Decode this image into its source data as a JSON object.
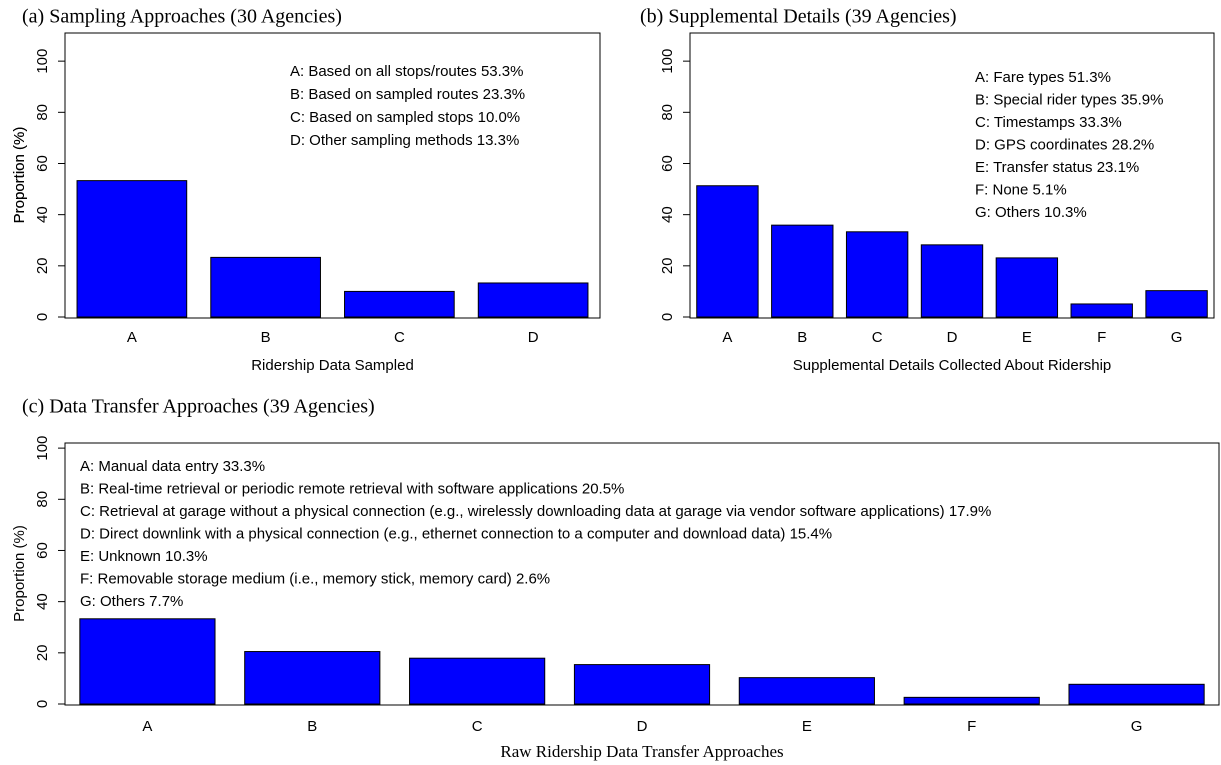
{
  "chart_data": [
    {
      "type": "bar",
      "title": "(a) Sampling Approaches  (30 Agencies)",
      "x_label": "Ridership Data Sampled",
      "y_label": "Proportion (%)",
      "categories": [
        "A",
        "B",
        "C",
        "D"
      ],
      "values": [
        53.3,
        23.3,
        10.0,
        13.3
      ],
      "color": "#0000ff",
      "ylim": [
        0,
        111
      ],
      "yticks": [
        0,
        20,
        40,
        60,
        80,
        100
      ],
      "annotations": [
        "A: Based on all stops/routes 53.3%",
        "B: Based on sampled routes 23.3%",
        "C: Based on sampled stops 10.0%",
        "D: Other sampling methods 13.3%"
      ]
    },
    {
      "type": "bar",
      "title": "(b) Supplemental Details  (39 Agencies)",
      "x_label": "Supplemental Details Collected About Ridership",
      "y_label": "Proportion (%)",
      "categories": [
        "A",
        "B",
        "C",
        "D",
        "E",
        "F",
        "G"
      ],
      "values": [
        51.3,
        35.9,
        33.3,
        28.2,
        23.1,
        5.1,
        10.3
      ],
      "color": "#0000ff",
      "ylim": [
        0,
        111
      ],
      "yticks": [
        0,
        20,
        40,
        60,
        80,
        100
      ],
      "annotations": [
        "A: Fare types 51.3%",
        "B: Special rider types 35.9%",
        "C: Timestamps 33.3%",
        "D: GPS coordinates 28.2%",
        "E: Transfer status 23.1%",
        "F: None 5.1%",
        "G: Others 10.3%"
      ]
    },
    {
      "type": "bar",
      "title": "(c) Data Transfer Approaches  (39 Agencies)",
      "x_label": "Raw Ridership Data Transfer Approaches",
      "y_label": "Proportion (%)",
      "categories": [
        "A",
        "B",
        "C",
        "D",
        "E",
        "F",
        "G"
      ],
      "values": [
        33.3,
        20.5,
        17.9,
        15.4,
        10.3,
        2.6,
        7.7
      ],
      "color": "#0000ff",
      "ylim": [
        0,
        102
      ],
      "yticks": [
        0,
        20,
        40,
        60,
        80,
        100
      ],
      "annotations": [
        "A: Manual data entry 33.3%",
        "B: Real-time retrieval or periodic remote retrieval with software applications 20.5%",
        "C: Retrieval at garage without a physical connection (e.g., wirelessly downloading data at garage via vendor software applications) 17.9%",
        "D: Direct downlink with a physical connection (e.g., ethernet connection to a computer and download data) 15.4%",
        "E: Unknown 10.3%",
        "F: Removable storage medium (i.e., memory stick, memory card) 2.6%",
        "G: Others 7.7%"
      ]
    }
  ]
}
